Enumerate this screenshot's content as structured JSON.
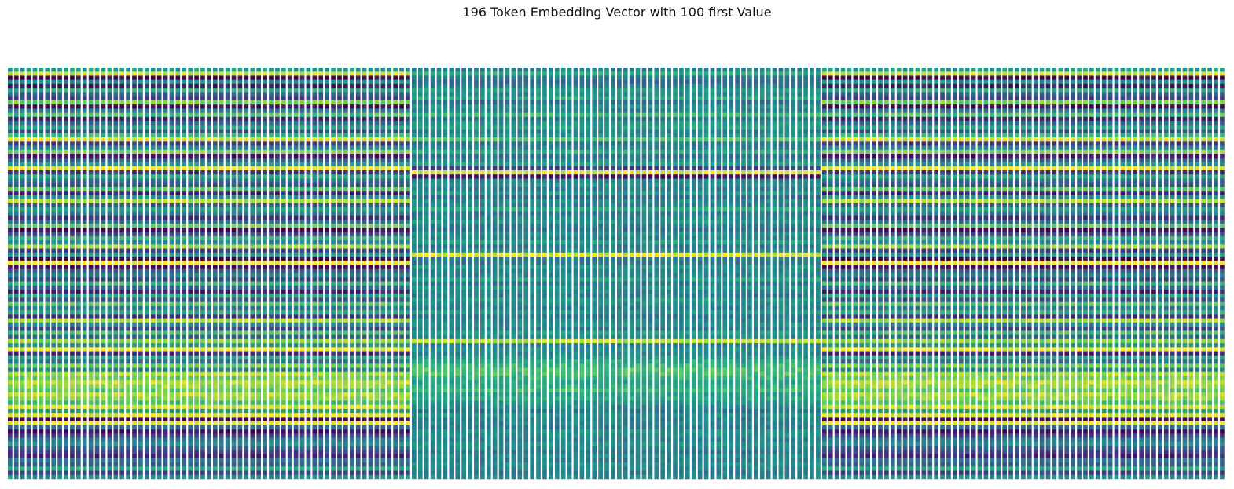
{
  "chart_data": {
    "type": "heatmap",
    "title": "196 Token Embedding Vector with 100 first Value",
    "xlabel": "",
    "ylabel": "",
    "axes_visible": false,
    "grid": false,
    "colormap": "viridis",
    "n_tokens": 196,
    "n_values": 100,
    "value_range": [
      0,
      1
    ],
    "segments": [
      {
        "name": "",
        "token_start": 0,
        "token_end": 64,
        "row_values": [
          0.55,
          0.92,
          0.02,
          0.48,
          0.08,
          0.62,
          0.3,
          0.2,
          0.78,
          0.05,
          0.4,
          0.7,
          0.12,
          0.35,
          0.58,
          0.26,
          0.66,
          0.94,
          0.18,
          0.45,
          0.8,
          0.06,
          0.32,
          0.52,
          0.97,
          0.15,
          0.6,
          0.38,
          0.24,
          0.72,
          0.1,
          0.5,
          0.88,
          0.28,
          0.56,
          0.42,
          0.14,
          0.36,
          0.75,
          0.03,
          0.22,
          0.64,
          0.46,
          0.84,
          0.16,
          0.54,
          0.02,
          0.99,
          0.04,
          0.3,
          0.44,
          0.2,
          0.68,
          0.34,
          0.1,
          0.58,
          0.26,
          0.74,
          0.4,
          0.62,
          0.16,
          0.86,
          0.48,
          0.22,
          0.7,
          0.32,
          0.82,
          0.52,
          0.96,
          0.12,
          0.6,
          0.38,
          0.78,
          0.44,
          0.86,
          0.76,
          0.9,
          0.84,
          0.74,
          0.88,
          0.82,
          0.7,
          0.92,
          0.56,
          0.94,
          0.02,
          0.98,
          0.34,
          0.04,
          0.2,
          0.4,
          0.5,
          0.3,
          0.2,
          0.1,
          0.4,
          0.3,
          0.6,
          0.2,
          0.5
        ]
      },
      {
        "name": "",
        "token_start": 65,
        "token_end": 130,
        "row_values": [
          0.45,
          0.62,
          0.4,
          0.35,
          0.42,
          0.55,
          0.48,
          0.6,
          0.38,
          0.5,
          0.45,
          0.66,
          0.4,
          0.52,
          0.58,
          0.44,
          0.5,
          0.72,
          0.4,
          0.46,
          0.62,
          0.38,
          0.48,
          0.56,
          0.2,
          0.94,
          0.05,
          0.45,
          0.5,
          0.42,
          0.54,
          0.36,
          0.48,
          0.44,
          0.6,
          0.4,
          0.46,
          0.52,
          0.42,
          0.38,
          0.5,
          0.44,
          0.56,
          0.4,
          0.48,
          0.95,
          0.42,
          0.4,
          0.52,
          0.46,
          0.44,
          0.58,
          0.4,
          0.5,
          0.46,
          0.42,
          0.54,
          0.48,
          0.44,
          0.52,
          0.4,
          0.46,
          0.5,
          0.42,
          0.56,
          0.48,
          0.9,
          0.44,
          0.5,
          0.46,
          0.52,
          0.6,
          0.66,
          0.72,
          0.7,
          0.64,
          0.58,
          0.62,
          0.68,
          0.56,
          0.6,
          0.52,
          0.48,
          0.4,
          0.5,
          0.44,
          0.46,
          0.42,
          0.5,
          0.48,
          0.44,
          0.52,
          0.46,
          0.4,
          0.48,
          0.44,
          0.5,
          0.46,
          0.42,
          0.48
        ]
      },
      {
        "name": "",
        "token_start": 131,
        "token_end": 195,
        "row_values": [
          0.55,
          0.92,
          0.02,
          0.48,
          0.08,
          0.62,
          0.3,
          0.2,
          0.78,
          0.05,
          0.4,
          0.7,
          0.12,
          0.35,
          0.58,
          0.26,
          0.66,
          0.94,
          0.18,
          0.45,
          0.8,
          0.06,
          0.32,
          0.52,
          0.97,
          0.15,
          0.6,
          0.38,
          0.24,
          0.72,
          0.1,
          0.5,
          0.88,
          0.28,
          0.56,
          0.42,
          0.14,
          0.36,
          0.75,
          0.03,
          0.22,
          0.64,
          0.46,
          0.84,
          0.16,
          0.54,
          0.02,
          0.99,
          0.04,
          0.3,
          0.44,
          0.2,
          0.68,
          0.34,
          0.1,
          0.58,
          0.26,
          0.74,
          0.4,
          0.62,
          0.16,
          0.86,
          0.48,
          0.22,
          0.7,
          0.32,
          0.82,
          0.52,
          0.96,
          0.12,
          0.6,
          0.38,
          0.78,
          0.44,
          0.86,
          0.76,
          0.9,
          0.84,
          0.74,
          0.88,
          0.82,
          0.7,
          0.92,
          0.56,
          0.94,
          0.02,
          0.98,
          0.34,
          0.04,
          0.2,
          0.4,
          0.5,
          0.3,
          0.2,
          0.1,
          0.4,
          0.3,
          0.6,
          0.2,
          0.5
        ]
      }
    ]
  }
}
